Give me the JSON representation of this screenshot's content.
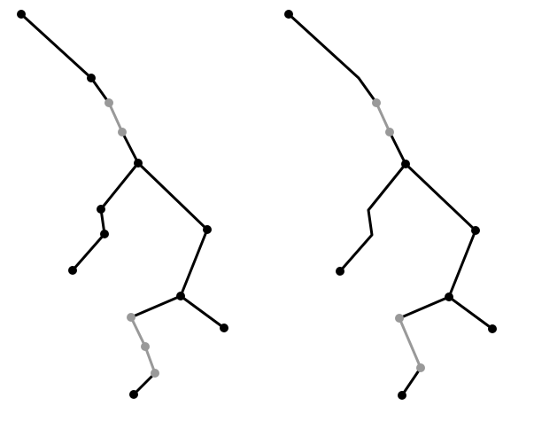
{
  "colors": {
    "background": "#ffffff",
    "primary": "#000000",
    "highlight": "#999999"
  },
  "diagram": {
    "type": "tree-comparison",
    "panels": [
      {
        "id": "left",
        "description_visible_text": ""
      },
      {
        "id": "right",
        "description_visible_text": ""
      }
    ]
  }
}
